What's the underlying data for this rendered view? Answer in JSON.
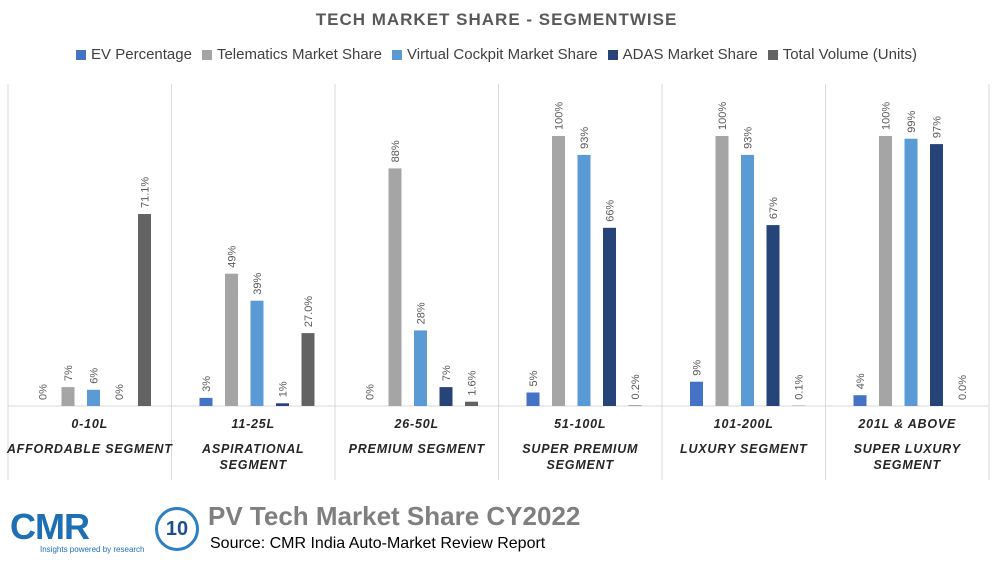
{
  "chart_data": {
    "type": "bar",
    "title": "TECH MARKET SHARE - SEGMENTWISE",
    "legend_position": "top",
    "grid": false,
    "ylim": [
      0,
      100
    ],
    "categories": [
      {
        "range": "0-10L",
        "segment": [
          "AFFORDABLE SEGMENT"
        ]
      },
      {
        "range": "11-25L",
        "segment": [
          "ASPIRATIONAL",
          "SEGMENT"
        ]
      },
      {
        "range": "26-50L",
        "segment": [
          "PREMIUM SEGMENT"
        ]
      },
      {
        "range": "51-100L",
        "segment": [
          "SUPER PREMIUM",
          "SEGMENT"
        ]
      },
      {
        "range": "101-200L",
        "segment": [
          "LUXURY SEGMENT"
        ]
      },
      {
        "range": "201L & ABOVE",
        "segment": [
          "SUPER LUXURY",
          "SEGMENT"
        ]
      }
    ],
    "series": [
      {
        "name": "EV Percentage",
        "color": "#4472c4",
        "values": [
          0,
          3,
          0,
          5,
          9,
          4
        ],
        "labels": [
          "0%",
          "3%",
          "0%",
          "5%",
          "9%",
          "4%"
        ]
      },
      {
        "name": "Telematics Market Share",
        "color": "#a5a5a5",
        "values": [
          7,
          49,
          88,
          100,
          100,
          100
        ],
        "labels": [
          "7%",
          "49%",
          "88%",
          "100%",
          "100%",
          "100%"
        ]
      },
      {
        "name": "Virtual Cockpit Market Share",
        "color": "#5b9bd5",
        "values": [
          6,
          39,
          28,
          93,
          93,
          99
        ],
        "labels": [
          "6%",
          "39%",
          "28%",
          "93%",
          "93%",
          "99%"
        ]
      },
      {
        "name": "ADAS Market Share",
        "color": "#264478",
        "values": [
          0,
          1,
          7,
          66,
          67,
          97
        ],
        "labels": [
          "0%",
          "1%",
          "7%",
          "66%",
          "67%",
          "97%"
        ]
      },
      {
        "name": "Total Volume (Units)",
        "color": "#636363",
        "values": [
          71.1,
          27.0,
          1.6,
          0.2,
          0.1,
          0.0
        ],
        "labels": [
          "71.1%",
          "27.0%",
          "1.6%",
          "0.2%",
          "0.1%",
          "0.0%"
        ]
      }
    ]
  },
  "footer": {
    "logo_text": "CMR",
    "logo_tagline": "Insights powered by research",
    "logo_badge": "10",
    "title": "PV Tech Market Share CY2022",
    "source": "Source: CMR India Auto-Market Review Report"
  }
}
